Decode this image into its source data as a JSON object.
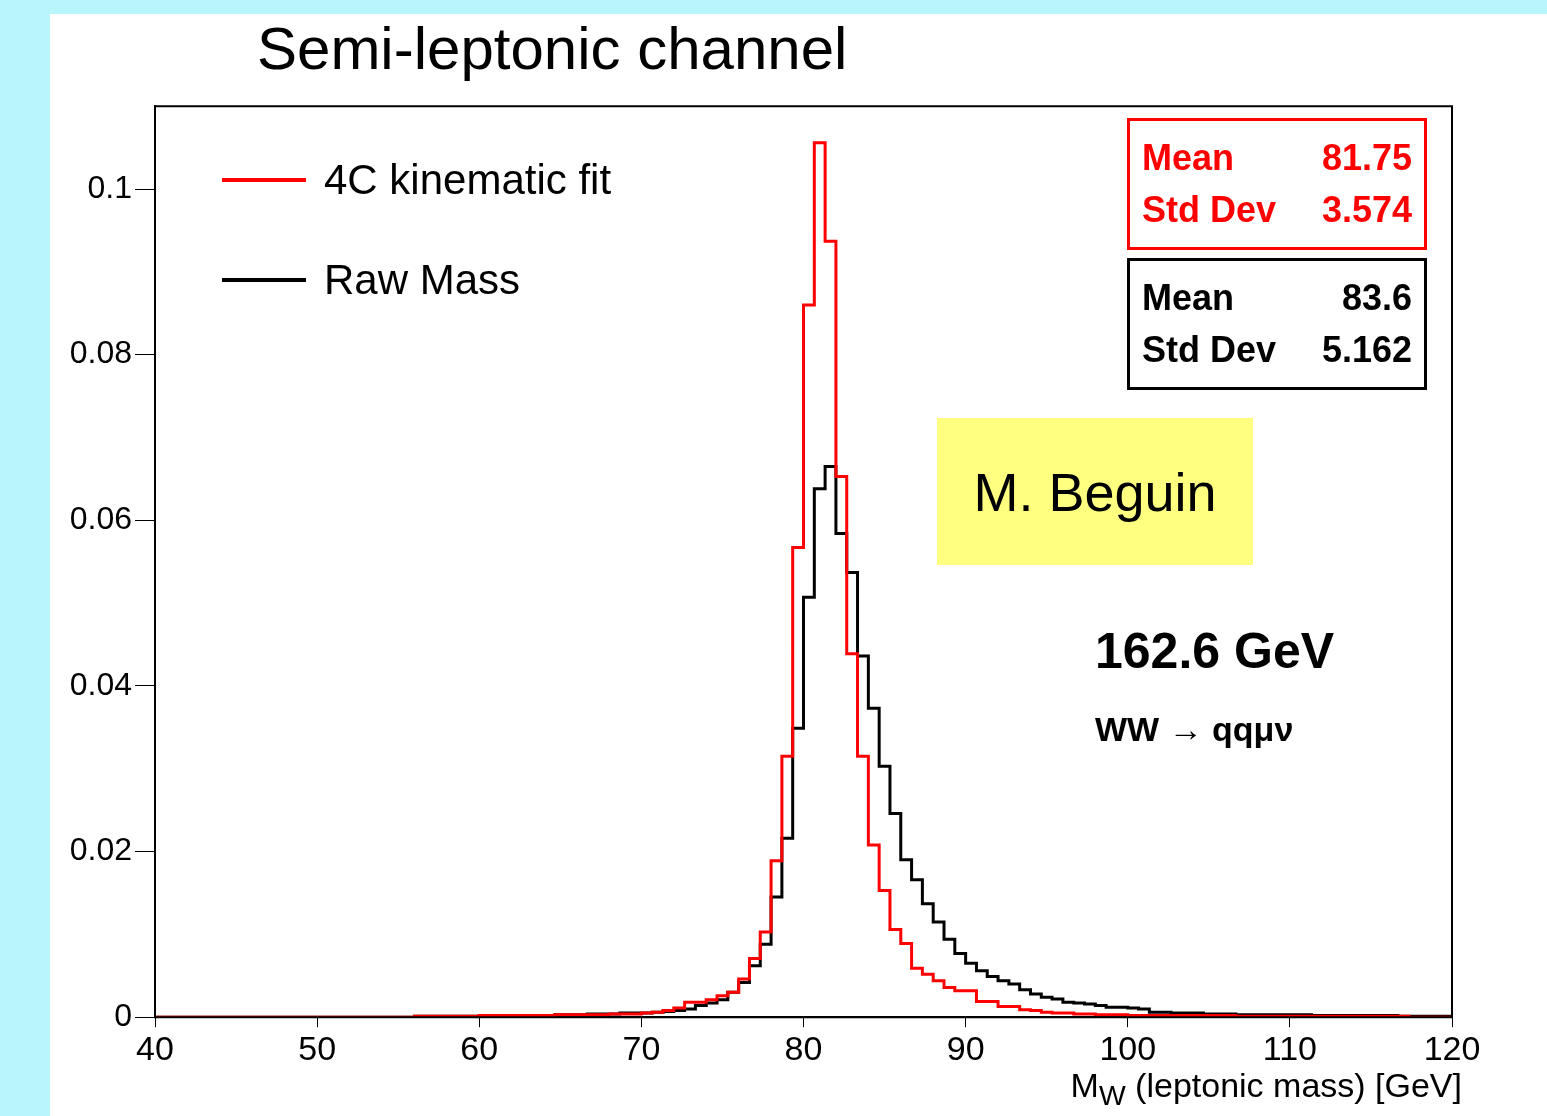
{
  "chart_data": {
    "type": "histogram",
    "title": "Semi-leptonic channel",
    "xlabel": "M$_{W}$  (leptonic mass)  [GeV]",
    "bins": [
      40,
      40.667,
      41.333,
      42,
      42.667,
      43.333,
      44,
      44.667,
      45.333,
      46,
      46.667,
      47.333,
      48,
      48.667,
      49.333,
      50,
      50.667,
      51.333,
      52,
      52.667,
      53.333,
      54,
      54.667,
      55.333,
      56,
      56.667,
      57.333,
      58,
      58.667,
      59.333,
      60,
      60.667,
      61.333,
      62,
      62.667,
      63.333,
      64,
      64.667,
      65.333,
      66,
      66.667,
      67.333,
      68,
      68.667,
      69.333,
      70,
      70.667,
      71.333,
      72,
      72.667,
      73.333,
      74,
      74.667,
      75.333,
      76,
      76.667,
      77.333,
      78,
      78.667,
      79.333,
      80,
      80.667,
      81.333,
      82,
      82.667,
      83.333,
      84,
      84.667,
      85.333,
      86,
      86.667,
      87.333,
      88,
      88.667,
      89.333,
      90,
      90.667,
      91.333,
      92,
      92.667,
      93.333,
      94,
      94.667,
      95.333,
      96,
      96.667,
      97.333,
      98,
      98.667,
      99.333,
      100,
      100.667,
      101.333,
      102,
      102.667,
      103.333,
      104,
      104.667,
      105.333,
      106,
      106.667,
      107.333,
      108,
      108.667,
      109.333,
      110,
      110.667,
      111.333,
      112,
      112.667,
      113.333,
      114,
      114.667,
      115.333,
      116,
      116.667,
      117.333,
      118,
      118.667,
      119.333,
      120
    ],
    "series": [
      {
        "name": "4C kinematic fit",
        "color": "#ff0000",
        "values": [
          0,
          0,
          0,
          0,
          0,
          0,
          0,
          0,
          0,
          0,
          0,
          0,
          0,
          0,
          0,
          0,
          0,
          0,
          0,
          0,
          0,
          0,
          0,
          0,
          0.0001,
          0.0001,
          0.0001,
          0.0001,
          0.0001,
          0.0001,
          0.0002,
          0.0002,
          0.0002,
          0.0002,
          0.0002,
          0.0002,
          0.0002,
          0.0003,
          0.0003,
          0.0003,
          0.0003,
          0.0003,
          0.0004,
          0.0004,
          0.0004,
          0.0005,
          0.0006,
          0.0008,
          0.0011,
          0.0018,
          0.0018,
          0.0021,
          0.0026,
          0.003,
          0.0046,
          0.0071,
          0.0103,
          0.0189,
          0.0315,
          0.0567,
          0.086,
          0.1056,
          0.0937,
          0.0653,
          0.0439,
          0.0315,
          0.0208,
          0.0153,
          0.0106,
          0.0089,
          0.0059,
          0.0052,
          0.0044,
          0.0036,
          0.0032,
          0.0032,
          0.0019,
          0.0019,
          0.0013,
          0.0013,
          0.0009,
          0.0008,
          0.0006,
          0.0005,
          0.0005,
          0.0004,
          0.0004,
          0.0003,
          0.0003,
          0.0003,
          0.0002,
          0.0002,
          0.0002,
          0.0002,
          0.0002,
          0.0002,
          0.0002,
          0.0002,
          0.0002,
          0.0002,
          0.0001,
          0.0001,
          0.0001,
          0.0001,
          0.0001,
          0.0001,
          0.0001,
          0.0001,
          0.0001,
          0.0001,
          0.0001,
          0.0001,
          0.0001,
          0.0001,
          0.0001,
          0.0001,
          0,
          0,
          0,
          0
        ]
      },
      {
        "name": "Raw Mass",
        "color": "#000000",
        "values": [
          0,
          0,
          0,
          0,
          0,
          0,
          0,
          0,
          0,
          0,
          0,
          0,
          0,
          0,
          0,
          0,
          0,
          0,
          0,
          0,
          0,
          0,
          0,
          0,
          0.0001,
          0.0001,
          0.0001,
          0.0001,
          0.0001,
          0.0001,
          0.0002,
          0.0002,
          0.0002,
          0.0002,
          0.0002,
          0.0002,
          0.0002,
          0.0003,
          0.0003,
          0.0003,
          0.0004,
          0.0004,
          0.0004,
          0.0005,
          0.0005,
          0.0005,
          0.0006,
          0.0007,
          0.0008,
          0.001,
          0.0014,
          0.0017,
          0.0021,
          0.003,
          0.0042,
          0.0062,
          0.0088,
          0.0145,
          0.0216,
          0.0349,
          0.0507,
          0.0638,
          0.0665,
          0.0584,
          0.0537,
          0.0436,
          0.0373,
          0.0303,
          0.0246,
          0.019,
          0.0166,
          0.0137,
          0.0115,
          0.0094,
          0.0077,
          0.0065,
          0.0056,
          0.0049,
          0.0044,
          0.004,
          0.0033,
          0.0028,
          0.0024,
          0.0022,
          0.0018,
          0.0017,
          0.0016,
          0.0014,
          0.0012,
          0.0012,
          0.0011,
          0.001,
          0.0006,
          0.0006,
          0.0005,
          0.0005,
          0.0005,
          0.0004,
          0.0004,
          0.0004,
          0.0003,
          0.0003,
          0.0003,
          0.0003,
          0.0003,
          0.0003,
          0.0003,
          0.0002,
          0.0002,
          0.0002,
          0.0002,
          0.0002,
          0.0002,
          0.0002,
          0.0002,
          0.0001,
          0.0001,
          0.0001,
          0.0001,
          0.0001
        ]
      }
    ],
    "xlim": [
      40,
      120
    ],
    "xticks": [
      40,
      50,
      60,
      70,
      80,
      90,
      100,
      110,
      120
    ],
    "ylim": [
      0,
      0.11
    ],
    "yticks": [
      0,
      0.02,
      0.04,
      0.06,
      0.08,
      0.1
    ],
    "grid": false,
    "legend": "top left",
    "annotations": [
      "Mean  81.75",
      "Std Dev  3.574",
      "Mean  83.6",
      "Std Dev  5.162",
      "162.6 GeV",
      "WW → qqμν",
      "M. Beguin"
    ]
  }
}
